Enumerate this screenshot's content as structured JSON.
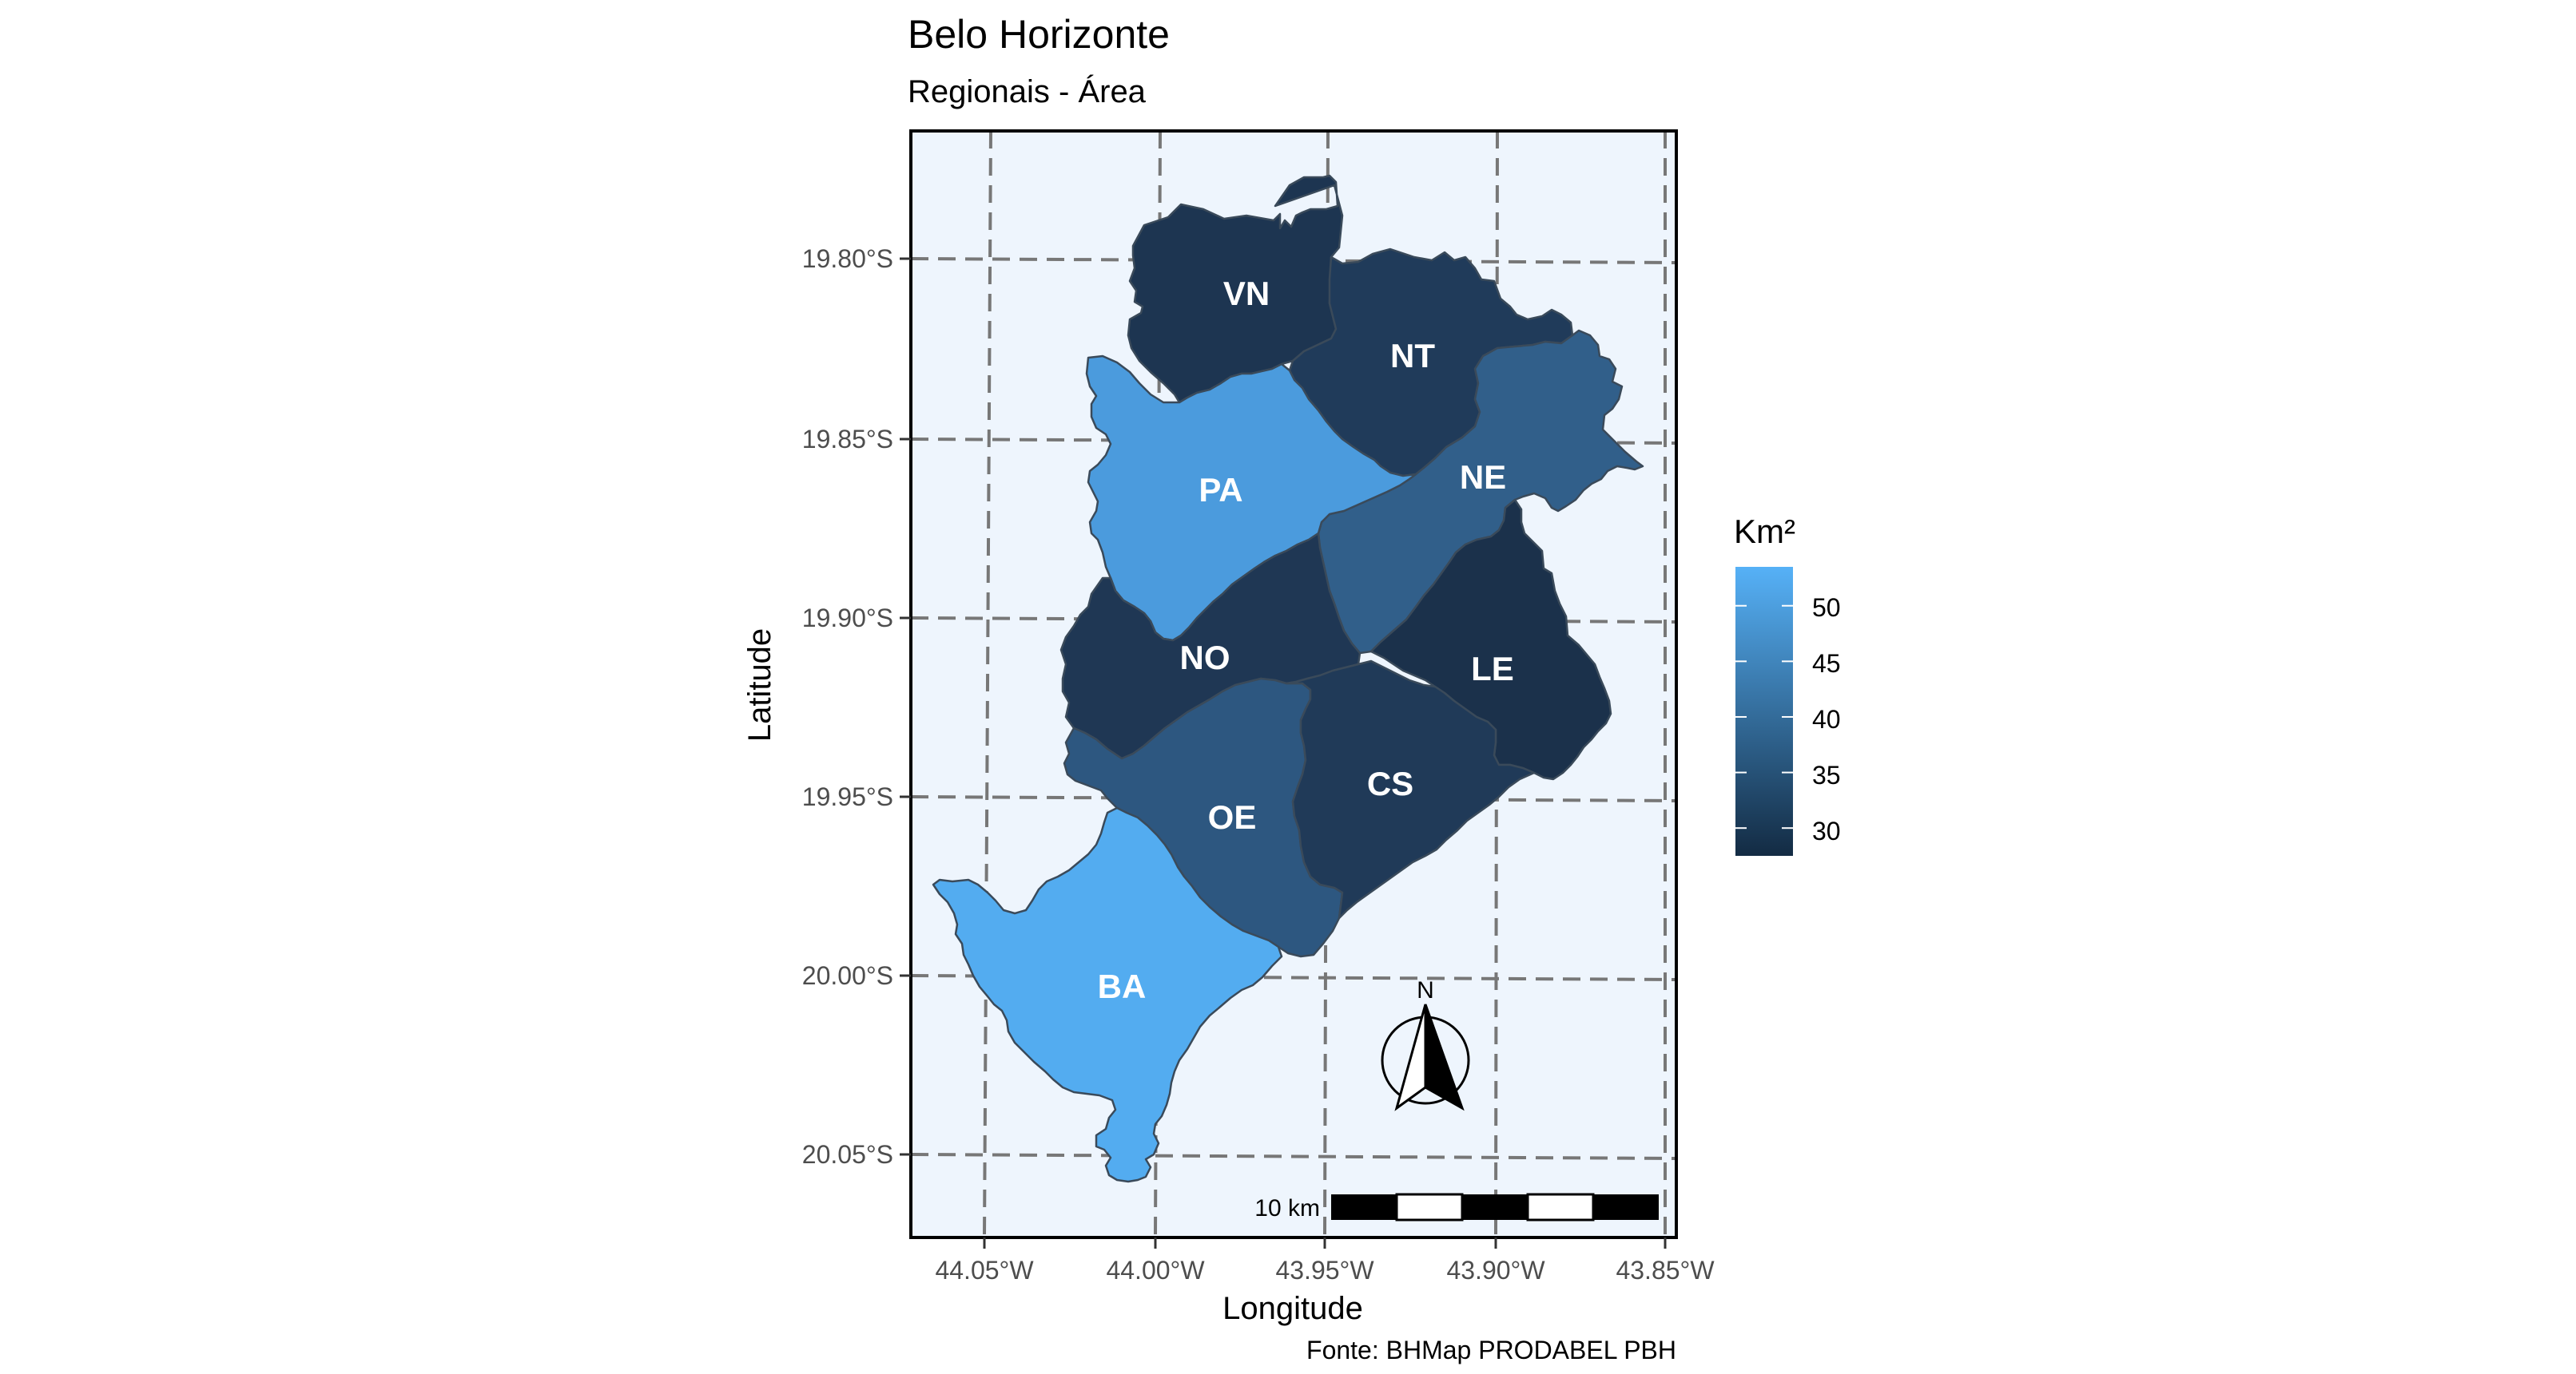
{
  "map": {
    "title": "Belo Horizonte",
    "subtitle": "Regionais - Área",
    "x_axis_label": "Longitude",
    "y_axis_label": "Latitude",
    "x_ticks": [
      "44.05°W",
      "44.00°W",
      "43.95°W",
      "43.90°W",
      "43.85°W"
    ],
    "y_ticks": [
      "19.80°S",
      "19.85°S",
      "19.90°S",
      "19.95°S",
      "20.00°S",
      "20.05°S"
    ],
    "caption": "Fonte: BHMap PRODABEL PBH",
    "background_color": "#eef5fd",
    "north_arrow_label": "N",
    "scale_bar_label": "10 km",
    "legend": {
      "title": "Km²",
      "ticks": [
        "50",
        "45",
        "40",
        "35",
        "30"
      ],
      "color_low": "#132b43",
      "color_high": "#56b1f7",
      "range": [
        27.5,
        53.5
      ]
    },
    "regions": [
      {
        "code": "VN",
        "color": "#1d3551"
      },
      {
        "code": "NT",
        "color": "#203b5a"
      },
      {
        "code": "NE",
        "color": "#315f8a"
      },
      {
        "code": "PA",
        "color": "#4b9bdd"
      },
      {
        "code": "NO",
        "color": "#1f3754"
      },
      {
        "code": "LE",
        "color": "#1b314b"
      },
      {
        "code": "OE",
        "color": "#2d5780"
      },
      {
        "code": "CS",
        "color": "#203a58"
      },
      {
        "code": "BA",
        "color": "#53acf0"
      }
    ]
  }
}
